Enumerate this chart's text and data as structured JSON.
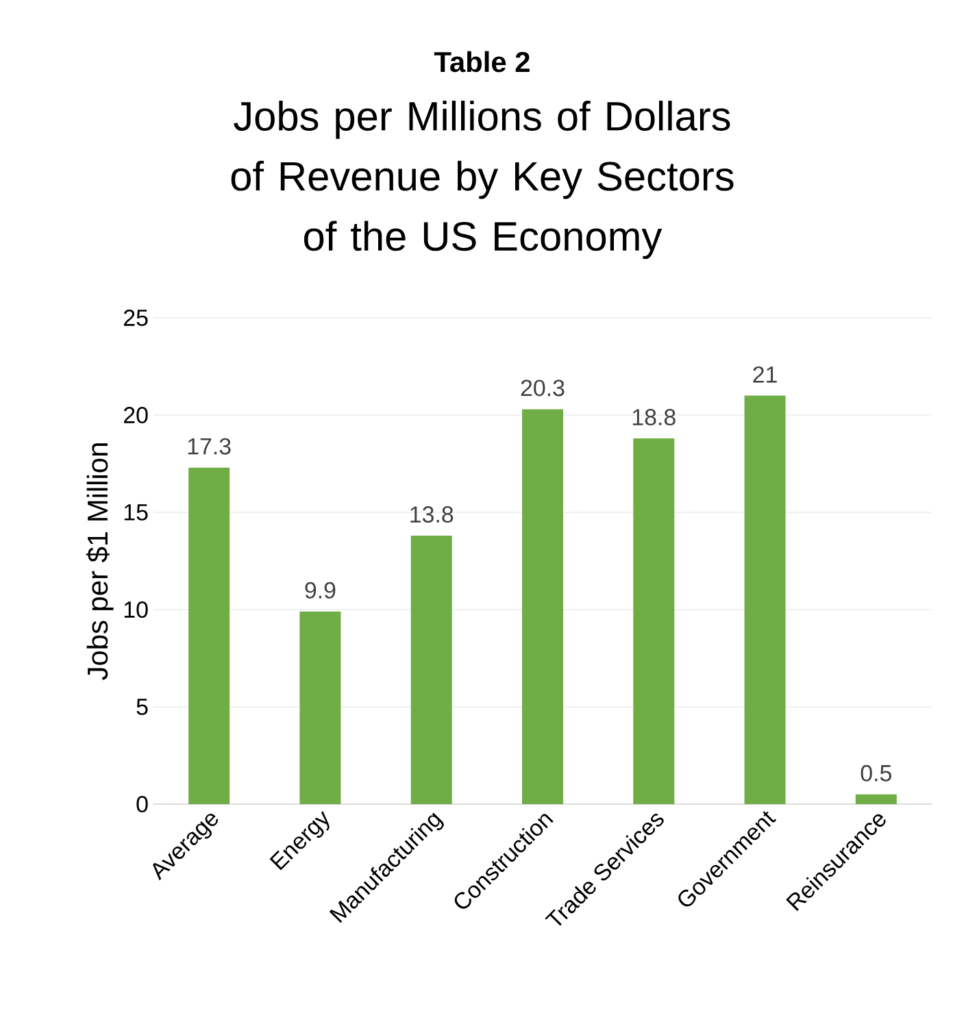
{
  "chart_data": {
    "type": "bar",
    "title": "Table 2",
    "subtitle": "Jobs per Millions of Dollars of Revenue by Key Sectors of the US Economy",
    "ylabel": "Jobs per $1 Million",
    "categories": [
      "Average",
      "Energy",
      "Manufacturing",
      "Construction",
      "Trade Services",
      "Government",
      "Reinsurance"
    ],
    "values": [
      17.3,
      9.9,
      13.8,
      20.3,
      18.8,
      21,
      0.5
    ],
    "color": "#70ad47",
    "ylim": [
      0,
      25
    ],
    "yticks": [
      0,
      5,
      10,
      15,
      20,
      25
    ],
    "grid": "y",
    "data_labels": true
  }
}
